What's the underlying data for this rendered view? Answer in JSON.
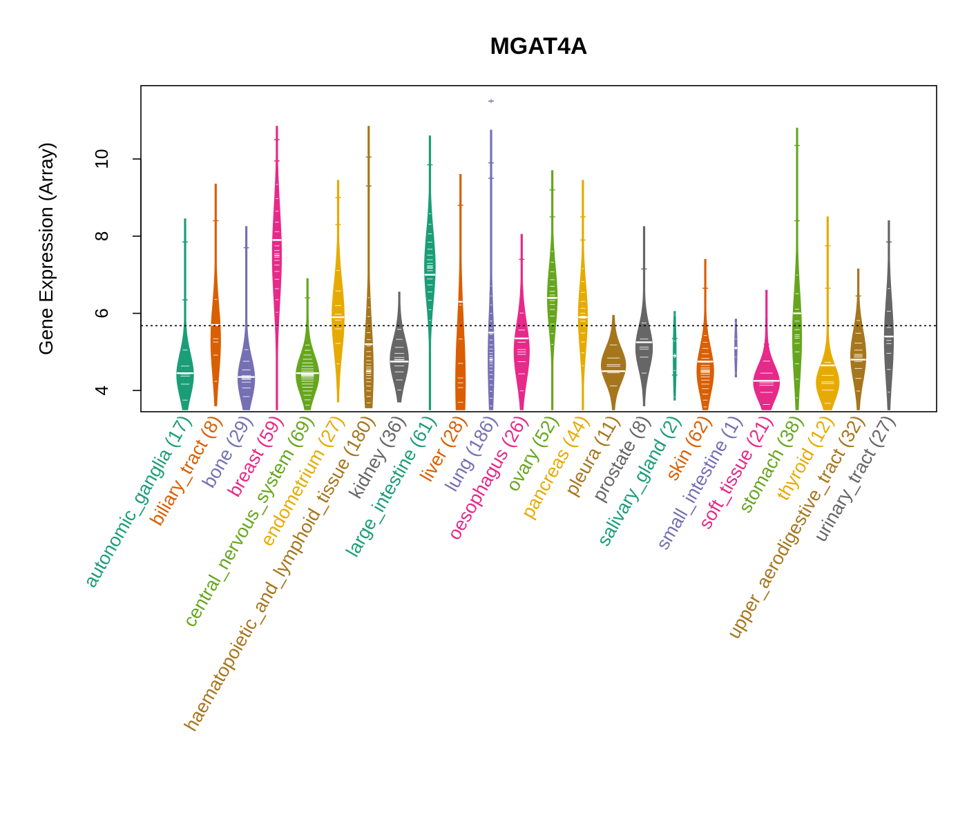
{
  "chart_data": {
    "type": "violin",
    "title": "MGAT4A",
    "xlabel": "",
    "ylabel": "Gene Expression (Array)",
    "ylim": [
      3.45,
      11.9
    ],
    "yticks": [
      4,
      6,
      8,
      10
    ],
    "reference_line": 5.68,
    "categories": [
      {
        "name": "autonomic_ganglia",
        "count": 17,
        "label": "autonomic_ganglia (17)",
        "color": "#1b9e77",
        "min": 3.5,
        "max": 8.45,
        "median": 4.45,
        "mode": 4.4,
        "spread": 0.55,
        "width": 0.55,
        "outliers": [
          7.85,
          6.35
        ]
      },
      {
        "name": "biliary_tract",
        "count": 8,
        "label": "biliary_tract (8)",
        "color": "#d95f02",
        "min": 3.6,
        "max": 9.35,
        "median": 5.7,
        "mode": 5.3,
        "spread": 0.9,
        "width": 0.32,
        "outliers": [
          8.4
        ]
      },
      {
        "name": "bone",
        "count": 29,
        "label": "bone (29)",
        "color": "#7570b3",
        "min": 3.5,
        "max": 8.25,
        "median": 4.35,
        "mode": 4.3,
        "spread": 0.55,
        "width": 0.55,
        "outliers": [
          7.7
        ]
      },
      {
        "name": "breast",
        "count": 59,
        "label": "breast (59)",
        "color": "#e7298a",
        "min": 3.5,
        "max": 10.85,
        "median": 7.9,
        "mode": 7.5,
        "spread": 1.2,
        "width": 0.3,
        "outliers": [
          10.5,
          9.95
        ]
      },
      {
        "name": "central_nervous_system",
        "count": 69,
        "label": "central_nervous_system (69)",
        "color": "#66a61e",
        "min": 3.5,
        "max": 6.9,
        "median": 4.45,
        "mode": 4.4,
        "spread": 0.5,
        "width": 0.75,
        "outliers": [
          6.4
        ]
      },
      {
        "name": "endometrium",
        "count": 27,
        "label": "endometrium (27)",
        "color": "#e6ab02",
        "min": 3.7,
        "max": 9.45,
        "median": 5.9,
        "mode": 5.9,
        "spread": 0.9,
        "width": 0.4,
        "outliers": [
          9.0,
          8.3
        ]
      },
      {
        "name": "haematopoietic_and_lymphoid_tissue",
        "count": 180,
        "label": "haematopoietic_and_lymphoid_tissue (180)",
        "color": "#a6761d",
        "min": 3.55,
        "max": 10.85,
        "median": 5.2,
        "mode": 4.5,
        "spread": 1.2,
        "width": 0.3,
        "outliers": [
          10.05,
          9.3
        ]
      },
      {
        "name": "kidney",
        "count": 36,
        "label": "kidney (36)",
        "color": "#666666",
        "min": 3.7,
        "max": 6.55,
        "median": 4.75,
        "mode": 4.8,
        "spread": 0.55,
        "width": 0.6,
        "outliers": []
      },
      {
        "name": "large_intestine",
        "count": 61,
        "label": "large_intestine (61)",
        "color": "#1b9e77",
        "min": 3.5,
        "max": 10.6,
        "median": 7.0,
        "mode": 7.2,
        "spread": 0.9,
        "width": 0.35,
        "outliers": [
          9.85
        ]
      },
      {
        "name": "liver",
        "count": 28,
        "label": "liver (28)",
        "color": "#d95f02",
        "min": 3.5,
        "max": 9.6,
        "median": 6.3,
        "mode": 4.2,
        "spread": 1.5,
        "width": 0.32,
        "outliers": [
          8.8
        ]
      },
      {
        "name": "lung",
        "count": 186,
        "label": "lung (186)",
        "color": "#7570b3",
        "min": 3.5,
        "max": 10.75,
        "median": 5.5,
        "mode": 4.8,
        "spread": 1.2,
        "width": 0.2,
        "outliers": [
          11.5,
          9.9,
          9.5
        ]
      },
      {
        "name": "oesophagus",
        "count": 26,
        "label": "oesophagus (26)",
        "color": "#e7298a",
        "min": 3.5,
        "max": 8.05,
        "median": 5.35,
        "mode": 5.0,
        "spread": 0.75,
        "width": 0.5,
        "outliers": [
          7.4
        ]
      },
      {
        "name": "ovary",
        "count": 52,
        "label": "ovary (52)",
        "color": "#66a61e",
        "min": 3.5,
        "max": 9.7,
        "median": 6.4,
        "mode": 6.4,
        "spread": 0.8,
        "width": 0.32,
        "outliers": [
          9.2,
          8.5
        ]
      },
      {
        "name": "pancreas",
        "count": 44,
        "label": "pancreas (44)",
        "color": "#e6ab02",
        "min": 3.5,
        "max": 9.45,
        "median": 5.9,
        "mode": 5.9,
        "spread": 0.85,
        "width": 0.3,
        "outliers": [
          8.5,
          7.9
        ]
      },
      {
        "name": "pleura",
        "count": 11,
        "label": "pleura (11)",
        "color": "#a6761d",
        "min": 3.5,
        "max": 5.95,
        "median": 4.5,
        "mode": 4.65,
        "spread": 0.45,
        "width": 0.8,
        "outliers": []
      },
      {
        "name": "prostate",
        "count": 8,
        "label": "prostate (8)",
        "color": "#666666",
        "min": 3.6,
        "max": 8.25,
        "median": 5.25,
        "mode": 5.1,
        "spread": 0.55,
        "width": 0.55,
        "outliers": [
          7.15
        ]
      },
      {
        "name": "salivary_gland",
        "count": 2,
        "label": "salivary_gland (2)",
        "color": "#1b9e77",
        "min": 3.75,
        "max": 6.05,
        "median": 4.9,
        "mode": 4.9,
        "spread": 0.9,
        "width": 0.1,
        "outliers": [
          5.35,
          4.4
        ]
      },
      {
        "name": "skin",
        "count": 62,
        "label": "skin (62)",
        "color": "#d95f02",
        "min": 3.5,
        "max": 7.4,
        "median": 4.75,
        "mode": 4.5,
        "spread": 0.6,
        "width": 0.55,
        "outliers": [
          6.65
        ]
      },
      {
        "name": "small_intestine",
        "count": 1,
        "label": "small_intestine (1)",
        "color": "#7570b3",
        "min": 4.35,
        "max": 5.85,
        "median": 5.1,
        "mode": 5.1,
        "spread": 0.55,
        "width": 0.08,
        "outliers": []
      },
      {
        "name": "soft_tissue",
        "count": 21,
        "label": "soft_tissue (21)",
        "color": "#e7298a",
        "min": 3.5,
        "max": 6.6,
        "median": 4.25,
        "mode": 4.2,
        "spread": 0.45,
        "width": 0.85,
        "outliers": [
          5.2
        ]
      },
      {
        "name": "stomach",
        "count": 38,
        "label": "stomach (38)",
        "color": "#66a61e",
        "min": 3.5,
        "max": 10.8,
        "median": 6.0,
        "mode": 5.4,
        "spread": 1.1,
        "width": 0.3,
        "outliers": [
          10.35,
          8.4
        ]
      },
      {
        "name": "thyroid",
        "count": 12,
        "label": "thyroid (12)",
        "color": "#e6ab02",
        "min": 3.5,
        "max": 8.5,
        "median": 4.65,
        "mode": 4.2,
        "spread": 0.45,
        "width": 0.75,
        "outliers": [
          7.75,
          6.65
        ]
      },
      {
        "name": "upper_aerodigestive_tract",
        "count": 32,
        "label": "upper_aerodigestive_tract (32)",
        "color": "#a6761d",
        "min": 3.5,
        "max": 7.15,
        "median": 4.8,
        "mode": 4.9,
        "spread": 0.65,
        "width": 0.5,
        "outliers": [
          6.45
        ]
      },
      {
        "name": "urinary_tract",
        "count": 27,
        "label": "urinary_tract (27)",
        "color": "#666666",
        "min": 3.5,
        "max": 8.4,
        "median": 5.4,
        "mode": 5.3,
        "spread": 1.0,
        "width": 0.3,
        "outliers": [
          7.85
        ]
      }
    ]
  }
}
